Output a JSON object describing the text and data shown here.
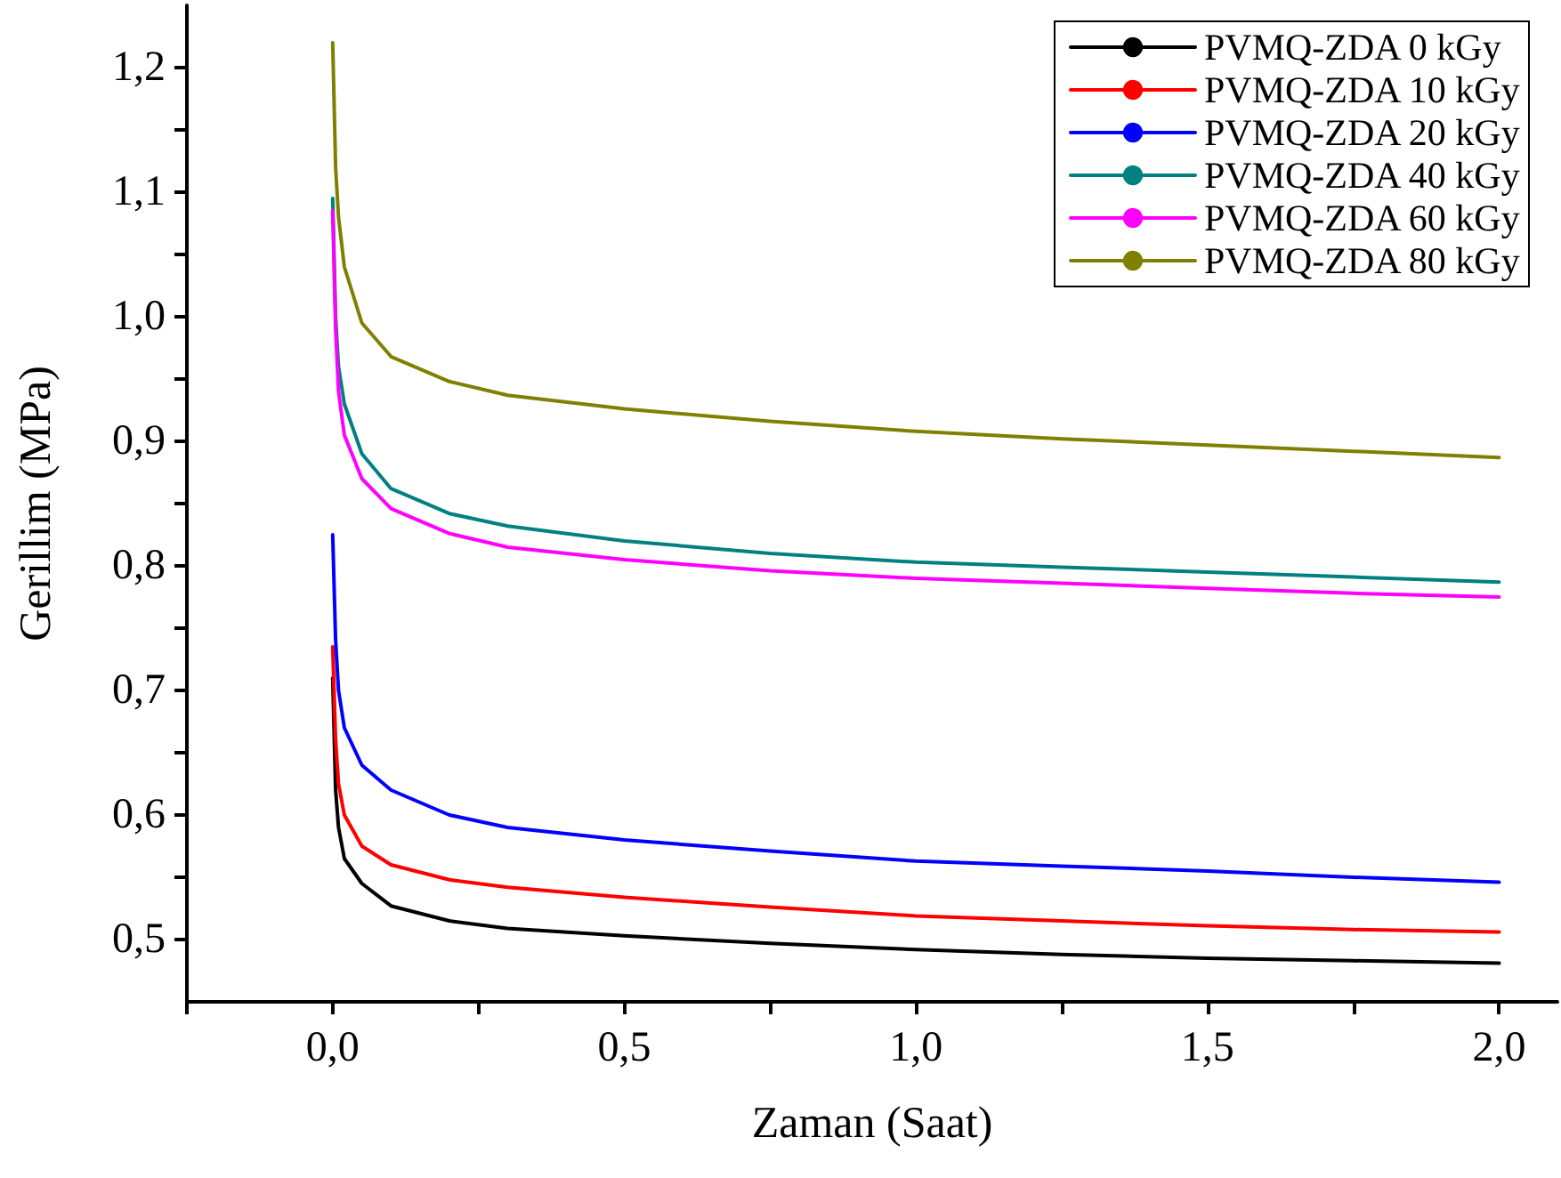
{
  "chart_data": {
    "type": "line",
    "xlabel": "Zaman (Saat)",
    "ylabel": "Gerillim (MPa)",
    "x": [
      0,
      0.005,
      0.01,
      0.02,
      0.05,
      0.1,
      0.2,
      0.3,
      0.5,
      0.75,
      1.0,
      1.25,
      1.5,
      1.75,
      2.0
    ],
    "series": [
      {
        "name": "PVMQ-ZDA 0 kGy",
        "color": "#000000",
        "values": [
          0.71,
          0.62,
          0.59,
          0.565,
          0.545,
          0.527,
          0.515,
          0.509,
          0.503,
          0.497,
          0.492,
          0.488,
          0.485,
          0.483,
          0.481
        ]
      },
      {
        "name": "PVMQ-ZDA 10 kGy",
        "color": "#ff0000",
        "values": [
          0.735,
          0.66,
          0.625,
          0.6,
          0.575,
          0.56,
          0.548,
          0.542,
          0.534,
          0.526,
          0.519,
          0.515,
          0.511,
          0.508,
          0.506
        ]
      },
      {
        "name": "PVMQ-ZDA 20 kGy",
        "color": "#0000ff",
        "values": [
          0.825,
          0.74,
          0.7,
          0.67,
          0.64,
          0.62,
          0.6,
          0.59,
          0.58,
          0.571,
          0.563,
          0.559,
          0.555,
          0.55,
          0.546
        ]
      },
      {
        "name": "PVMQ-ZDA 40 kGy",
        "color": "#008080",
        "values": [
          1.095,
          1.0,
          0.96,
          0.93,
          0.89,
          0.862,
          0.842,
          0.832,
          0.82,
          0.81,
          0.803,
          0.799,
          0.795,
          0.791,
          0.787
        ]
      },
      {
        "name": "PVMQ-ZDA 60 kGy",
        "color": "#ff00ff",
        "values": [
          1.085,
          0.99,
          0.94,
          0.905,
          0.87,
          0.846,
          0.826,
          0.815,
          0.805,
          0.796,
          0.79,
          0.786,
          0.782,
          0.778,
          0.775
        ]
      },
      {
        "name": "PVMQ-ZDA 80 kGy",
        "color": "#808000",
        "values": [
          1.22,
          1.12,
          1.08,
          1.04,
          0.995,
          0.968,
          0.948,
          0.937,
          0.926,
          0.916,
          0.908,
          0.902,
          0.897,
          0.892,
          0.887
        ]
      }
    ],
    "xlim": [
      -0.25,
      2.1
    ],
    "xticks": [
      {
        "value": -0.25,
        "label": null
      },
      {
        "value": 0,
        "label": "0,0"
      },
      {
        "value": 0.25,
        "label": null
      },
      {
        "value": 0.5,
        "label": "0,5"
      },
      {
        "value": 0.75,
        "label": null
      },
      {
        "value": 1.0,
        "label": "1,0"
      },
      {
        "value": 1.25,
        "label": null
      },
      {
        "value": 1.5,
        "label": "1,5"
      },
      {
        "value": 1.75,
        "label": null
      },
      {
        "value": 2.0,
        "label": "2,0"
      }
    ],
    "ylim": [
      0.45,
      1.25
    ],
    "yticks": [
      {
        "value": 0.5,
        "label": "0,5"
      },
      {
        "value": 0.55,
        "label": null
      },
      {
        "value": 0.6,
        "label": "0,6"
      },
      {
        "value": 0.65,
        "label": null
      },
      {
        "value": 0.7,
        "label": "0,7"
      },
      {
        "value": 0.75,
        "label": null
      },
      {
        "value": 0.8,
        "label": "0,8"
      },
      {
        "value": 0.85,
        "label": null
      },
      {
        "value": 0.9,
        "label": "0,9"
      },
      {
        "value": 0.95,
        "label": null
      },
      {
        "value": 1.0,
        "label": "1,0"
      },
      {
        "value": 1.05,
        "label": null
      },
      {
        "value": 1.1,
        "label": "1,1"
      },
      {
        "value": 1.15,
        "label": null
      },
      {
        "value": 1.2,
        "label": "1,2"
      }
    ],
    "grid": false,
    "legend": "top right",
    "marker": "none",
    "line_style": "solid"
  }
}
